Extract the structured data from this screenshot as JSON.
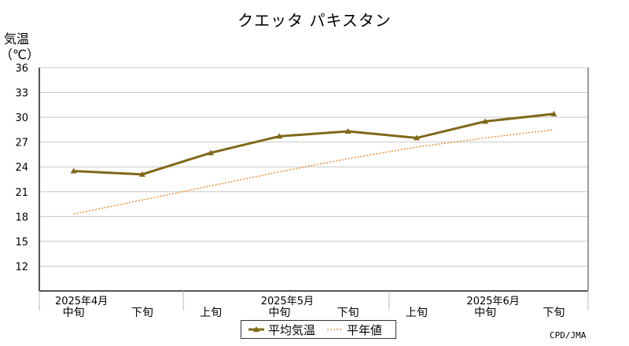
{
  "title": "クエッタ パキスタン",
  "credit": "CPD/JMA",
  "colors": {
    "series": "#806818",
    "normal": "#f08020",
    "grid": "#c8c8c8",
    "axis": "#555555"
  },
  "chart_data": {
    "type": "line",
    "ylabel": "気温（℃）",
    "ylabel_lines": [
      "気温",
      "（℃）"
    ],
    "ylim": [
      9,
      36
    ],
    "yticks": [
      12,
      15,
      18,
      21,
      24,
      27,
      30,
      33,
      36
    ],
    "grid": true,
    "legend_position": "bottom-center",
    "categories": [
      "中旬",
      "下旬",
      "上旬",
      "中旬",
      "下旬",
      "上旬",
      "中旬",
      "下旬"
    ],
    "months": [
      {
        "label": "2025年4月",
        "index": 0
      },
      {
        "label": "2025年5月",
        "index": 3
      },
      {
        "label": "2025年6月",
        "index": 6
      }
    ],
    "series": [
      {
        "name": "平均気温",
        "values": [
          23.5,
          23.1,
          25.7,
          27.7,
          28.3,
          27.5,
          29.5,
          30.4
        ],
        "style": "solid-marker"
      },
      {
        "name": "平年値",
        "values": [
          18.3,
          20.0,
          21.7,
          23.4,
          25.0,
          26.4,
          27.5,
          28.5
        ],
        "style": "dotted"
      }
    ]
  }
}
